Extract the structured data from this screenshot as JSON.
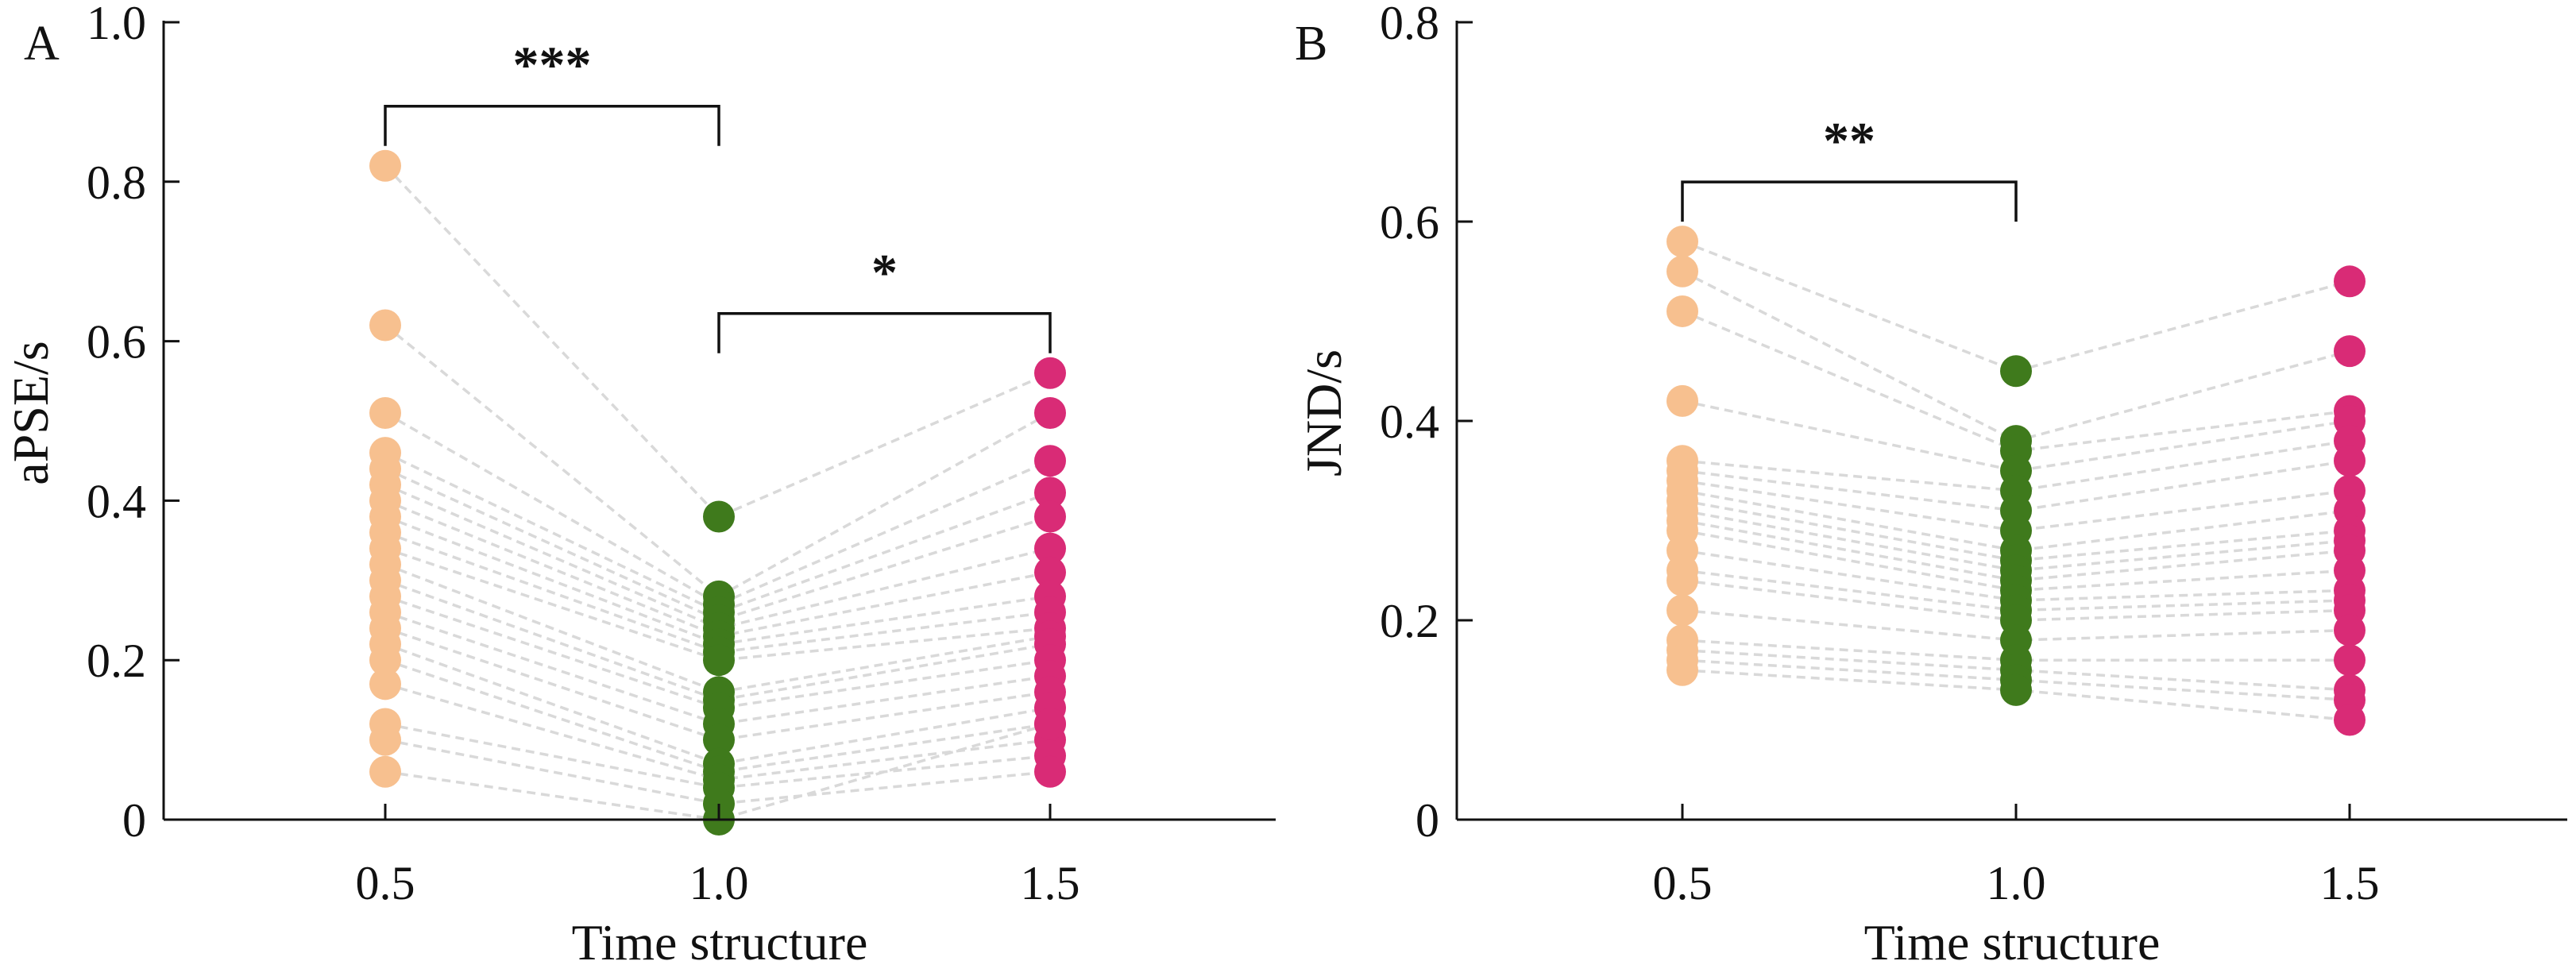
{
  "chart_data": [
    {
      "type": "scatter",
      "panel_label": "A",
      "xlabel": "Time structure",
      "ylabel": "aPSE/s",
      "categories": [
        "0.5",
        "1.0",
        "1.5"
      ],
      "ylim": [
        0,
        1.0
      ],
      "yticks": [
        "0",
        "0.2",
        "0.4",
        "0.6",
        "0.8",
        "1.0"
      ],
      "grid": false,
      "paired_lines": true,
      "series": [
        {
          "category": "0.5",
          "color": "#f7c08f",
          "values": [
            0.82,
            0.62,
            0.51,
            0.46,
            0.44,
            0.42,
            0.4,
            0.38,
            0.36,
            0.34,
            0.32,
            0.3,
            0.28,
            0.26,
            0.24,
            0.22,
            0.2,
            0.17,
            0.12,
            0.1,
            0.06
          ]
        },
        {
          "category": "1.0",
          "color": "#3f7a1c",
          "values": [
            0.38,
            0.28,
            0.27,
            0.26,
            0.25,
            0.24,
            0.23,
            0.22,
            0.21,
            0.2,
            0.16,
            0.15,
            0.14,
            0.12,
            0.1,
            0.07,
            0.06,
            0.05,
            0.04,
            0.02,
            0.0
          ]
        },
        {
          "category": "1.5",
          "color": "#d92b76",
          "values": [
            0.56,
            0.51,
            0.45,
            0.41,
            0.38,
            0.34,
            0.31,
            0.28,
            0.26,
            0.24,
            0.23,
            0.22,
            0.2,
            0.18,
            0.16,
            0.14,
            0.12,
            0.1,
            0.08,
            0.06,
            0.12
          ]
        }
      ],
      "significance": [
        {
          "from": "0.5",
          "to": "1.0",
          "label": "***"
        },
        {
          "from": "1.0",
          "to": "1.5",
          "label": "*"
        }
      ]
    },
    {
      "type": "scatter",
      "panel_label": "B",
      "xlabel": "Time structure",
      "ylabel": "JND/s",
      "categories": [
        "0.5",
        "1.0",
        "1.5"
      ],
      "ylim": [
        0,
        0.8
      ],
      "yticks": [
        "0",
        "0.2",
        "0.4",
        "0.6",
        "0.8"
      ],
      "grid": false,
      "paired_lines": true,
      "series": [
        {
          "category": "0.5",
          "color": "#f7c08f",
          "values": [
            0.58,
            0.55,
            0.51,
            0.42,
            0.36,
            0.35,
            0.34,
            0.33,
            0.32,
            0.31,
            0.3,
            0.29,
            0.27,
            0.25,
            0.24,
            0.21,
            0.18,
            0.17,
            0.16,
            0.15
          ]
        },
        {
          "category": "1.0",
          "color": "#3f7a1c",
          "values": [
            0.45,
            0.38,
            0.37,
            0.35,
            0.33,
            0.31,
            0.29,
            0.27,
            0.26,
            0.25,
            0.24,
            0.23,
            0.22,
            0.21,
            0.2,
            0.18,
            0.16,
            0.15,
            0.14,
            0.13
          ]
        },
        {
          "category": "1.5",
          "color": "#d92b76",
          "values": [
            0.54,
            0.47,
            0.41,
            0.4,
            0.38,
            0.36,
            0.33,
            0.31,
            0.29,
            0.28,
            0.27,
            0.25,
            0.23,
            0.22,
            0.21,
            0.19,
            0.16,
            0.13,
            0.12,
            0.1
          ]
        }
      ],
      "significance": [
        {
          "from": "0.5",
          "to": "1.0",
          "label": "**"
        }
      ]
    }
  ]
}
